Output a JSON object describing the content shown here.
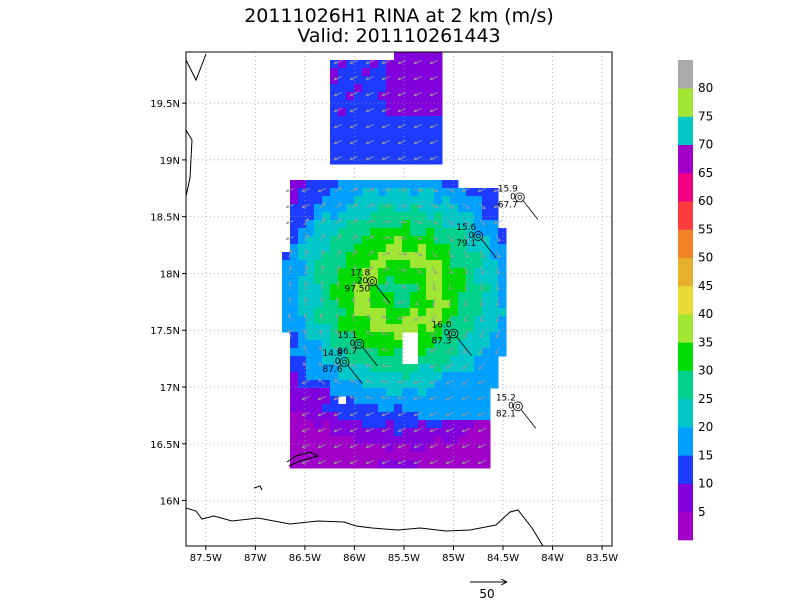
{
  "chart_data": {
    "type": "heatmap",
    "title": "20111026H1 RINA at 2 km (m/s)",
    "subtitle": "Valid: 201110261443",
    "xlabel": "",
    "ylabel": "",
    "xlim": [
      -87.7,
      -83.4
    ],
    "ylim": [
      15.6,
      19.95
    ],
    "x_ticks": [
      -87.5,
      -87,
      -86.5,
      -86,
      -85.5,
      -85,
      -84.5,
      -84,
      -83.5
    ],
    "x_tick_labels": [
      "87.5W",
      "87W",
      "86.5W",
      "86W",
      "85.5W",
      "85W",
      "84.5W",
      "84W",
      "83.5W"
    ],
    "y_ticks": [
      16,
      16.5,
      17,
      17.5,
      18,
      18.5,
      19,
      19.5
    ],
    "y_tick_labels": [
      "16N",
      "16.5N",
      "17N",
      "17.5N",
      "18N",
      "18.5N",
      "19N",
      "19.5N"
    ],
    "grid": true,
    "colorbar": {
      "levels": [
        5,
        10,
        15,
        20,
        25,
        30,
        35,
        40,
        45,
        50,
        55,
        60,
        65,
        70,
        75,
        80
      ],
      "labels": [
        "5",
        "10",
        "15",
        "20",
        "25",
        "30",
        "35",
        "40",
        "45",
        "50",
        "55",
        "60",
        "65",
        "70",
        "75",
        "80"
      ],
      "colors": [
        "#a000c8",
        "#8200dc",
        "#1e3cff",
        "#00a0ff",
        "#00c8c8",
        "#00d28c",
        "#00dc00",
        "#a0e632",
        "#e6dc32",
        "#e6af2d",
        "#f08228",
        "#fa3c3c",
        "#f00082",
        "#a000c8",
        "#00c8c8",
        "#a0e632",
        "#aaaaaa"
      ]
    },
    "storm_center": [
      -85.55,
      17.85
    ],
    "reference_vector": {
      "magnitude": 50,
      "label": "50"
    },
    "stations": [
      {
        "lon": -84.33,
        "lat": 18.67,
        "lines": [
          "15.9",
          "0",
          "67.7"
        ]
      },
      {
        "lon": -84.75,
        "lat": 18.33,
        "lines": [
          "15.6",
          "0",
          "79.1"
        ]
      },
      {
        "lon": -85.82,
        "lat": 17.93,
        "lines": [
          "17.8",
          "20",
          "97.50"
        ]
      },
      {
        "lon": -85.0,
        "lat": 17.47,
        "lines": [
          "16.0",
          "0",
          "87.3"
        ]
      },
      {
        "lon": -85.95,
        "lat": 17.38,
        "lines": [
          "15.1",
          "0",
          "86.7"
        ]
      },
      {
        "lon": -86.1,
        "lat": 17.22,
        "lines": [
          "14.8",
          "0",
          "87.6"
        ]
      },
      {
        "lon": -84.35,
        "lat": 16.83,
        "lines": [
          "15.2",
          "0",
          "82.1"
        ]
      }
    ]
  }
}
